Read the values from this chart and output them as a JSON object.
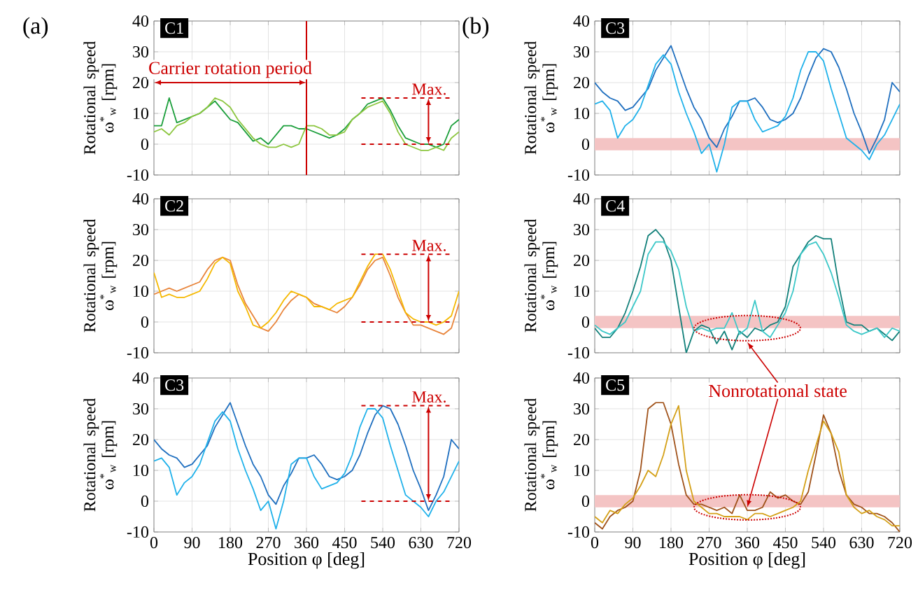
{
  "chart_data": [
    {
      "type": "line",
      "title": "C1",
      "ylabel": "Rotational speed ω$^{*}$$_{w}$ [rpm]",
      "xlim": [
        0,
        720
      ],
      "ylim": [
        -10,
        40
      ],
      "xticks": [
        0,
        90,
        180,
        270,
        360,
        450,
        540,
        630,
        720
      ],
      "yticks": [
        -10,
        0,
        10,
        20,
        30,
        40
      ],
      "grid": true,
      "tick_labels": "y",
      "x": [
        0,
        18,
        36,
        54,
        72,
        90,
        108,
        126,
        144,
        162,
        180,
        198,
        216,
        234,
        252,
        270,
        288,
        306,
        324,
        342,
        360,
        378,
        396,
        414,
        432,
        450,
        468,
        486,
        504,
        522,
        540,
        558,
        576,
        594,
        612,
        630,
        648,
        666,
        684,
        702,
        720
      ],
      "series": [
        {
          "color": "#1a9e3a",
          "values": [
            6,
            6,
            15,
            7,
            8,
            9,
            10,
            12,
            14,
            11,
            8,
            7,
            4,
            1,
            2,
            0,
            3,
            6,
            6,
            5,
            5,
            4,
            3,
            2,
            3,
            5,
            8,
            10,
            13,
            14,
            15,
            11,
            6,
            2,
            1,
            0,
            0,
            -1,
            0,
            6,
            8
          ]
        },
        {
          "color": "#8cc63f",
          "values": [
            4,
            5,
            3,
            6,
            7,
            9,
            10,
            12,
            15,
            14,
            12,
            8,
            5,
            2,
            0,
            -1,
            -1,
            0,
            -1,
            0,
            6,
            6,
            5,
            3,
            3,
            4,
            8,
            10,
            12,
            13,
            14,
            10,
            4,
            0,
            -1,
            -2,
            -2,
            -1,
            -2,
            2,
            4
          ]
        }
      ],
      "ref_lines": [
        {
          "axis": "x",
          "value": 360,
          "color": "#cc0000",
          "line_style": "solid"
        },
        {
          "axis": "y",
          "value": 15,
          "label": "Max.",
          "color": "#cc0000",
          "line_style": "dashed"
        },
        {
          "axis": "y",
          "value": 0,
          "color": "#cc0000",
          "line_style": "dashed"
        }
      ],
      "annotations": [
        "(a)",
        "Carrier rotation period"
      ]
    },
    {
      "type": "line",
      "title": "C2",
      "ylabel": "Rotational speed ω$^{*}$$_{w}$ [rpm]",
      "xlim": [
        0,
        720
      ],
      "ylim": [
        -10,
        40
      ],
      "xticks": [
        0,
        90,
        180,
        270,
        360,
        450,
        540,
        630,
        720
      ],
      "yticks": [
        -10,
        0,
        10,
        20,
        30,
        40
      ],
      "grid": true,
      "tick_labels": "y",
      "x": [
        0,
        18,
        36,
        54,
        72,
        90,
        108,
        126,
        144,
        162,
        180,
        198,
        216,
        234,
        252,
        270,
        288,
        306,
        324,
        342,
        360,
        378,
        396,
        414,
        432,
        450,
        468,
        486,
        504,
        522,
        540,
        558,
        576,
        594,
        612,
        630,
        648,
        666,
        684,
        702,
        720
      ],
      "series": [
        {
          "color": "#e8843a",
          "values": [
            9,
            10,
            11,
            10,
            11,
            12,
            13,
            17,
            20,
            21,
            20,
            12,
            6,
            2,
            -2,
            -3,
            0,
            4,
            7,
            9,
            8,
            6,
            5,
            4,
            3,
            5,
            8,
            12,
            17,
            20,
            21,
            15,
            8,
            3,
            -1,
            -1,
            -2,
            -3,
            -4,
            -2,
            6
          ]
        },
        {
          "color": "#f5b800",
          "values": [
            16,
            8,
            9,
            8,
            8,
            9,
            10,
            14,
            19,
            21,
            19,
            10,
            5,
            -1,
            -2,
            0,
            3,
            7,
            10,
            9,
            8,
            5,
            5,
            4,
            6,
            7,
            8,
            13,
            18,
            22,
            22,
            17,
            10,
            3,
            1,
            0,
            0,
            -1,
            0,
            2,
            10
          ]
        }
      ],
      "ref_lines": [
        {
          "axis": "y",
          "value": 22,
          "label": "Max.",
          "color": "#cc0000",
          "line_style": "dashed"
        },
        {
          "axis": "y",
          "value": 0,
          "color": "#cc0000",
          "line_style": "dashed"
        }
      ]
    },
    {
      "type": "line",
      "title": "C3",
      "xlabel": "Position φ [deg]",
      "ylabel": "Rotational speed ω$^{*}$$_{w}$ [rpm]",
      "xlim": [
        0,
        720
      ],
      "ylim": [
        -10,
        40
      ],
      "xticks": [
        0,
        90,
        180,
        270,
        360,
        450,
        540,
        630,
        720
      ],
      "yticks": [
        -10,
        0,
        10,
        20,
        30,
        40
      ],
      "grid": true,
      "x": [
        0,
        18,
        36,
        54,
        72,
        90,
        108,
        126,
        144,
        162,
        180,
        198,
        216,
        234,
        252,
        270,
        288,
        306,
        324,
        342,
        360,
        378,
        396,
        414,
        432,
        450,
        468,
        486,
        504,
        522,
        540,
        558,
        576,
        594,
        612,
        630,
        648,
        666,
        684,
        702,
        720
      ],
      "series": [
        {
          "color": "#1f6fbf",
          "values": [
            20,
            17,
            15,
            14,
            11,
            12,
            15,
            18,
            24,
            28,
            32,
            25,
            18,
            12,
            8,
            2,
            -1,
            5,
            9,
            14,
            14,
            15,
            12,
            8,
            7,
            8,
            10,
            15,
            22,
            28,
            31,
            30,
            25,
            18,
            10,
            4,
            -3,
            2,
            8,
            20,
            17
          ]
        },
        {
          "color": "#1fb1ea",
          "values": [
            13,
            14,
            11,
            2,
            6,
            8,
            12,
            19,
            26,
            29,
            26,
            17,
            10,
            4,
            -3,
            0,
            -9,
            0,
            12,
            14,
            14,
            8,
            4,
            5,
            6,
            9,
            15,
            24,
            30,
            30,
            27,
            18,
            10,
            2,
            0,
            -2,
            -5,
            0,
            3,
            8,
            13
          ]
        }
      ],
      "ref_lines": [
        {
          "axis": "y",
          "value": 31,
          "label": "Max.",
          "color": "#cc0000",
          "line_style": "dashed"
        },
        {
          "axis": "y",
          "value": 0,
          "color": "#cc0000",
          "line_style": "dashed"
        }
      ]
    },
    {
      "type": "line",
      "title": "C3",
      "ylabel": "Rotational speed ω$^{*}$$_{w}$ [rpm]",
      "xlim": [
        0,
        720
      ],
      "ylim": [
        -10,
        40
      ],
      "xticks": [
        0,
        90,
        180,
        270,
        360,
        450,
        540,
        630,
        720
      ],
      "yticks": [
        -10,
        0,
        10,
        20,
        30,
        40
      ],
      "grid": true,
      "tick_labels": "y",
      "x": [
        0,
        18,
        36,
        54,
        72,
        90,
        108,
        126,
        144,
        162,
        180,
        198,
        216,
        234,
        252,
        270,
        288,
        306,
        324,
        342,
        360,
        378,
        396,
        414,
        432,
        450,
        468,
        486,
        504,
        522,
        540,
        558,
        576,
        594,
        612,
        630,
        648,
        666,
        684,
        702,
        720
      ],
      "series": [
        {
          "color": "#1f6fbf",
          "values": [
            20,
            17,
            15,
            14,
            11,
            12,
            15,
            18,
            24,
            28,
            32,
            25,
            18,
            12,
            8,
            2,
            -1,
            5,
            9,
            14,
            14,
            15,
            12,
            8,
            7,
            8,
            10,
            15,
            22,
            28,
            31,
            30,
            25,
            18,
            10,
            4,
            -3,
            2,
            8,
            20,
            17
          ]
        },
        {
          "color": "#1fb1ea",
          "values": [
            13,
            14,
            11,
            2,
            6,
            8,
            12,
            19,
            26,
            29,
            26,
            17,
            10,
            4,
            -3,
            0,
            -9,
            0,
            12,
            14,
            14,
            8,
            4,
            5,
            6,
            9,
            15,
            24,
            30,
            30,
            27,
            18,
            10,
            2,
            0,
            -2,
            -5,
            0,
            3,
            8,
            13
          ]
        }
      ],
      "bands": [
        {
          "axis": "y",
          "from": -2,
          "to": 2,
          "color": "#f4c4c4"
        }
      ],
      "annotations": [
        "(b)"
      ]
    },
    {
      "type": "line",
      "title": "C4",
      "ylabel": "Rotational speed ω$^{*}$$_{w}$ [rpm]",
      "xlim": [
        0,
        720
      ],
      "ylim": [
        -10,
        40
      ],
      "xticks": [
        0,
        90,
        180,
        270,
        360,
        450,
        540,
        630,
        720
      ],
      "yticks": [
        -10,
        0,
        10,
        20,
        30,
        40
      ],
      "grid": true,
      "tick_labels": "y",
      "x": [
        0,
        18,
        36,
        54,
        72,
        90,
        108,
        126,
        144,
        162,
        180,
        198,
        216,
        234,
        252,
        270,
        288,
        306,
        324,
        342,
        360,
        378,
        396,
        414,
        432,
        450,
        468,
        486,
        504,
        522,
        540,
        558,
        576,
        594,
        612,
        630,
        648,
        666,
        684,
        702,
        720
      ],
      "series": [
        {
          "color": "#12807a",
          "values": [
            -2,
            -5,
            -5,
            -2,
            3,
            10,
            18,
            28,
            30,
            27,
            20,
            5,
            -10,
            -3,
            -1,
            -2,
            -7,
            -3,
            -9,
            -3,
            -5,
            -2,
            -3,
            -1,
            0,
            5,
            18,
            22,
            26,
            28,
            27,
            27,
            12,
            0,
            -1,
            -1,
            -3,
            -2,
            -4,
            -6,
            -3
          ]
        },
        {
          "color": "#3cc8c8",
          "values": [
            -1,
            -3,
            -4,
            -2,
            0,
            5,
            10,
            22,
            26,
            26,
            23,
            17,
            5,
            -3,
            -2,
            -3,
            -2,
            -2,
            3,
            -4,
            -2,
            7,
            -3,
            -5,
            -1,
            3,
            10,
            22,
            25,
            26,
            22,
            16,
            8,
            -1,
            -3,
            -4,
            -3,
            -2,
            -5,
            -2,
            -3
          ]
        }
      ],
      "bands": [
        {
          "axis": "y",
          "from": -2,
          "to": 2,
          "color": "#f4c4c4"
        }
      ]
    },
    {
      "type": "line",
      "title": "C5",
      "xlabel": "Position φ [deg]",
      "ylabel": "Rotational speed ω$^{*}$$_{w}$ [rpm]",
      "xlim": [
        0,
        720
      ],
      "ylim": [
        -10,
        40
      ],
      "xticks": [
        0,
        90,
        180,
        270,
        360,
        450,
        540,
        630,
        720
      ],
      "yticks": [
        -10,
        0,
        10,
        20,
        30,
        40
      ],
      "grid": true,
      "x": [
        0,
        18,
        36,
        54,
        72,
        90,
        108,
        126,
        144,
        162,
        180,
        198,
        216,
        234,
        252,
        270,
        288,
        306,
        324,
        342,
        360,
        378,
        396,
        414,
        432,
        450,
        468,
        486,
        504,
        522,
        540,
        558,
        576,
        594,
        612,
        630,
        648,
        666,
        684,
        702,
        720
      ],
      "series": [
        {
          "color": "#a0521a",
          "values": [
            -7,
            -9,
            -5,
            -3,
            -2,
            0,
            10,
            30,
            32,
            32,
            25,
            12,
            2,
            -1,
            -1,
            -2,
            -3,
            -2,
            -4,
            2,
            -3,
            -3,
            -2,
            3,
            1,
            2,
            0,
            -1,
            3,
            15,
            28,
            22,
            10,
            2,
            -1,
            -2,
            -4,
            -4,
            -5,
            -7,
            -10
          ]
        },
        {
          "color": "#d4a017",
          "values": [
            -5,
            -7,
            -3,
            -4,
            -1,
            1,
            5,
            10,
            8,
            15,
            25,
            31,
            10,
            0,
            -2,
            -4,
            -4,
            -5,
            -5,
            -5,
            -6,
            -4,
            -4,
            -5,
            -4,
            -3,
            -2,
            0,
            10,
            18,
            26,
            22,
            16,
            2,
            -2,
            -4,
            -3,
            -5,
            -6,
            -8,
            -8
          ]
        }
      ],
      "bands": [
        {
          "axis": "y",
          "from": -2,
          "to": 2,
          "color": "#f4c4c4"
        }
      ],
      "annotations": [
        {
          "text": "Nonrotational state",
          "x": 360,
          "y": -2
        }
      ]
    }
  ]
}
